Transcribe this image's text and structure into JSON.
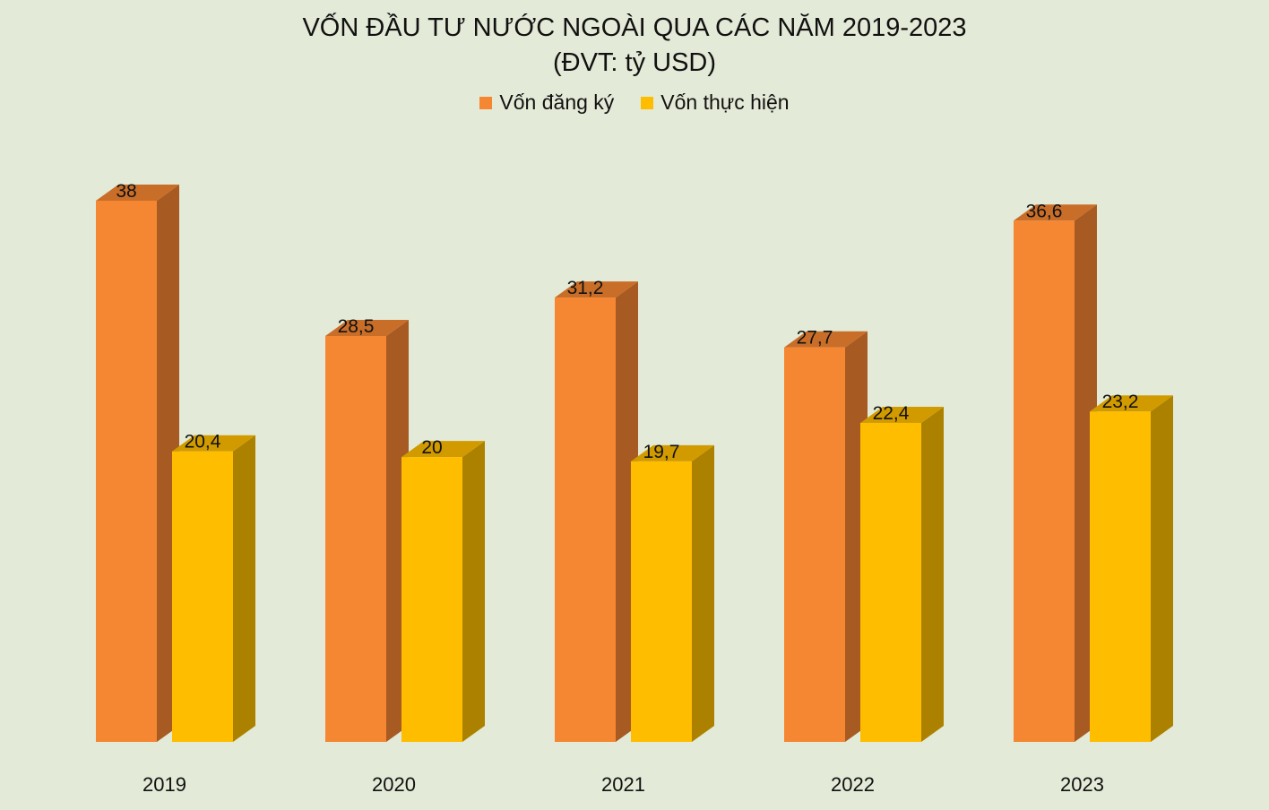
{
  "chart_data": {
    "type": "bar",
    "title": "VỐN ĐẦU TƯ NƯỚC NGOÀI QUA CÁC NĂM 2019-2023",
    "subtitle": "(ĐVT: tỷ USD)",
    "categories": [
      "2019",
      "2020",
      "2021",
      "2022",
      "2023"
    ],
    "series": [
      {
        "name": "Vốn đăng ký",
        "color": "#f58632",
        "values": [
          38,
          28.5,
          31.2,
          27.7,
          36.6
        ],
        "labels": [
          "38",
          "28,5",
          "31,2",
          "27,7",
          "36,6"
        ]
      },
      {
        "name": "Vốn thực hiện",
        "color": "#ffbd00",
        "values": [
          20.4,
          20,
          19.7,
          22.4,
          23.2
        ],
        "labels": [
          "20,4",
          "20",
          "19,7",
          "22,4",
          "23,2"
        ]
      }
    ],
    "xlabel": "",
    "ylabel": "",
    "ylim": [
      0,
      40
    ],
    "grid": false,
    "legend_position": "top",
    "style": "3d-column"
  }
}
